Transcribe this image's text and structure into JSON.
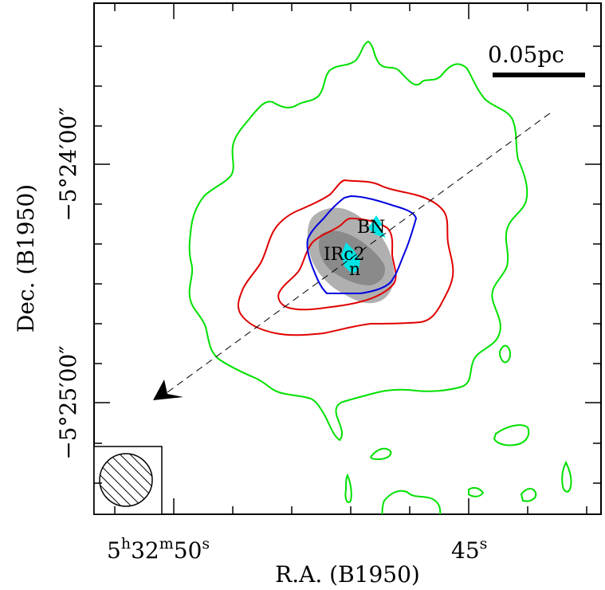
{
  "chart_data": {
    "type": "contour",
    "xlabel": "R.A. (B1950)",
    "ylabel": "Dec. (B1950)",
    "x_ticks": [
      {
        "label_main": "5",
        "sup1": "h",
        "mid": "32",
        "sup2": "m",
        "tail": "50",
        "sup3": "s"
      },
      {
        "label_main": "45",
        "sup3": "s"
      }
    ],
    "y_ticks": [
      "−5°24′00″",
      "−5°25′00″"
    ],
    "scale_bar_label": "0.05pc",
    "sources": [
      {
        "name": "BN"
      },
      {
        "name": "IRc2"
      },
      {
        "name": "n"
      }
    ],
    "contour_colors": {
      "green": "#00e000",
      "red": "#e00000",
      "blue": "#0000e0",
      "gray": "#a0a0a0",
      "cyan": "#00e5e5"
    },
    "beam_symbol": "hatched-circle",
    "outflow_axis": "dashed-arrow"
  }
}
